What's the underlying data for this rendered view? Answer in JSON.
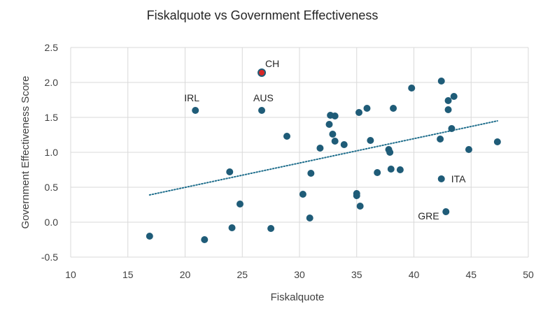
{
  "chart_data": {
    "type": "scatter",
    "title": "Fiskalquote vs Government Effectiveness",
    "xlabel": "Fiskalquote",
    "ylabel": "Government Effectiveness Score",
    "xlim": [
      10,
      50
    ],
    "ylim": [
      -0.5,
      2.5
    ],
    "xticks": [
      10,
      15,
      20,
      25,
      30,
      35,
      40,
      45,
      50
    ],
    "yticks": [
      -0.5,
      0.0,
      0.5,
      1.0,
      1.5,
      2.0,
      2.5
    ],
    "ytick_labels": [
      "-0.5",
      "0.0",
      "0.5",
      "1.0",
      "1.5",
      "2.0",
      "2.5"
    ],
    "grid": true,
    "legend": "none",
    "colors": {
      "points": "#1f5c78",
      "highlight": "#d62828",
      "trend": "#1f6e8c",
      "grid": "#d9d9d9"
    },
    "series": [
      {
        "points": [
          {
            "x": 16.9,
            "y": -0.2
          },
          {
            "x": 20.9,
            "y": 1.6,
            "label": "IRL"
          },
          {
            "x": 21.7,
            "y": -0.25
          },
          {
            "x": 23.9,
            "y": 0.72
          },
          {
            "x": 24.1,
            "y": -0.08
          },
          {
            "x": 24.8,
            "y": 0.26
          },
          {
            "x": 26.7,
            "y": 1.6,
            "label": "AUS"
          },
          {
            "x": 26.7,
            "y": 2.14,
            "label": "CH",
            "highlight": true
          },
          {
            "x": 27.5,
            "y": -0.09
          },
          {
            "x": 28.9,
            "y": 1.23
          },
          {
            "x": 30.3,
            "y": 0.4
          },
          {
            "x": 30.9,
            "y": 0.06
          },
          {
            "x": 31.0,
            "y": 0.7
          },
          {
            "x": 31.8,
            "y": 1.06
          },
          {
            "x": 32.6,
            "y": 1.4
          },
          {
            "x": 32.7,
            "y": 1.53
          },
          {
            "x": 32.9,
            "y": 1.26
          },
          {
            "x": 33.1,
            "y": 1.52
          },
          {
            "x": 33.1,
            "y": 1.16
          },
          {
            "x": 33.9,
            "y": 1.11
          },
          {
            "x": 35.0,
            "y": 0.41
          },
          {
            "x": 35.0,
            "y": 0.38
          },
          {
            "x": 35.2,
            "y": 1.57
          },
          {
            "x": 35.3,
            "y": 0.23
          },
          {
            "x": 35.9,
            "y": 1.63
          },
          {
            "x": 36.2,
            "y": 1.17
          },
          {
            "x": 36.8,
            "y": 0.71
          },
          {
            "x": 37.8,
            "y": 1.04
          },
          {
            "x": 37.9,
            "y": 1.0
          },
          {
            "x": 38.0,
            "y": 0.76
          },
          {
            "x": 38.2,
            "y": 1.63
          },
          {
            "x": 38.8,
            "y": 0.75
          },
          {
            "x": 39.8,
            "y": 1.92
          },
          {
            "x": 42.3,
            "y": 1.19
          },
          {
            "x": 42.4,
            "y": 2.02
          },
          {
            "x": 42.4,
            "y": 0.62,
            "label": "ITA"
          },
          {
            "x": 42.8,
            "y": 0.15,
            "label": "GRE"
          },
          {
            "x": 43.0,
            "y": 1.61
          },
          {
            "x": 43.0,
            "y": 1.74
          },
          {
            "x": 43.3,
            "y": 1.34
          },
          {
            "x": 43.5,
            "y": 1.8
          },
          {
            "x": 44.8,
            "y": 1.04
          },
          {
            "x": 47.3,
            "y": 1.15
          }
        ]
      }
    ],
    "trendline": {
      "type": "linear",
      "style": "dotted",
      "x": [
        16.9,
        47.3
      ],
      "y": [
        0.39,
        1.45
      ]
    }
  }
}
